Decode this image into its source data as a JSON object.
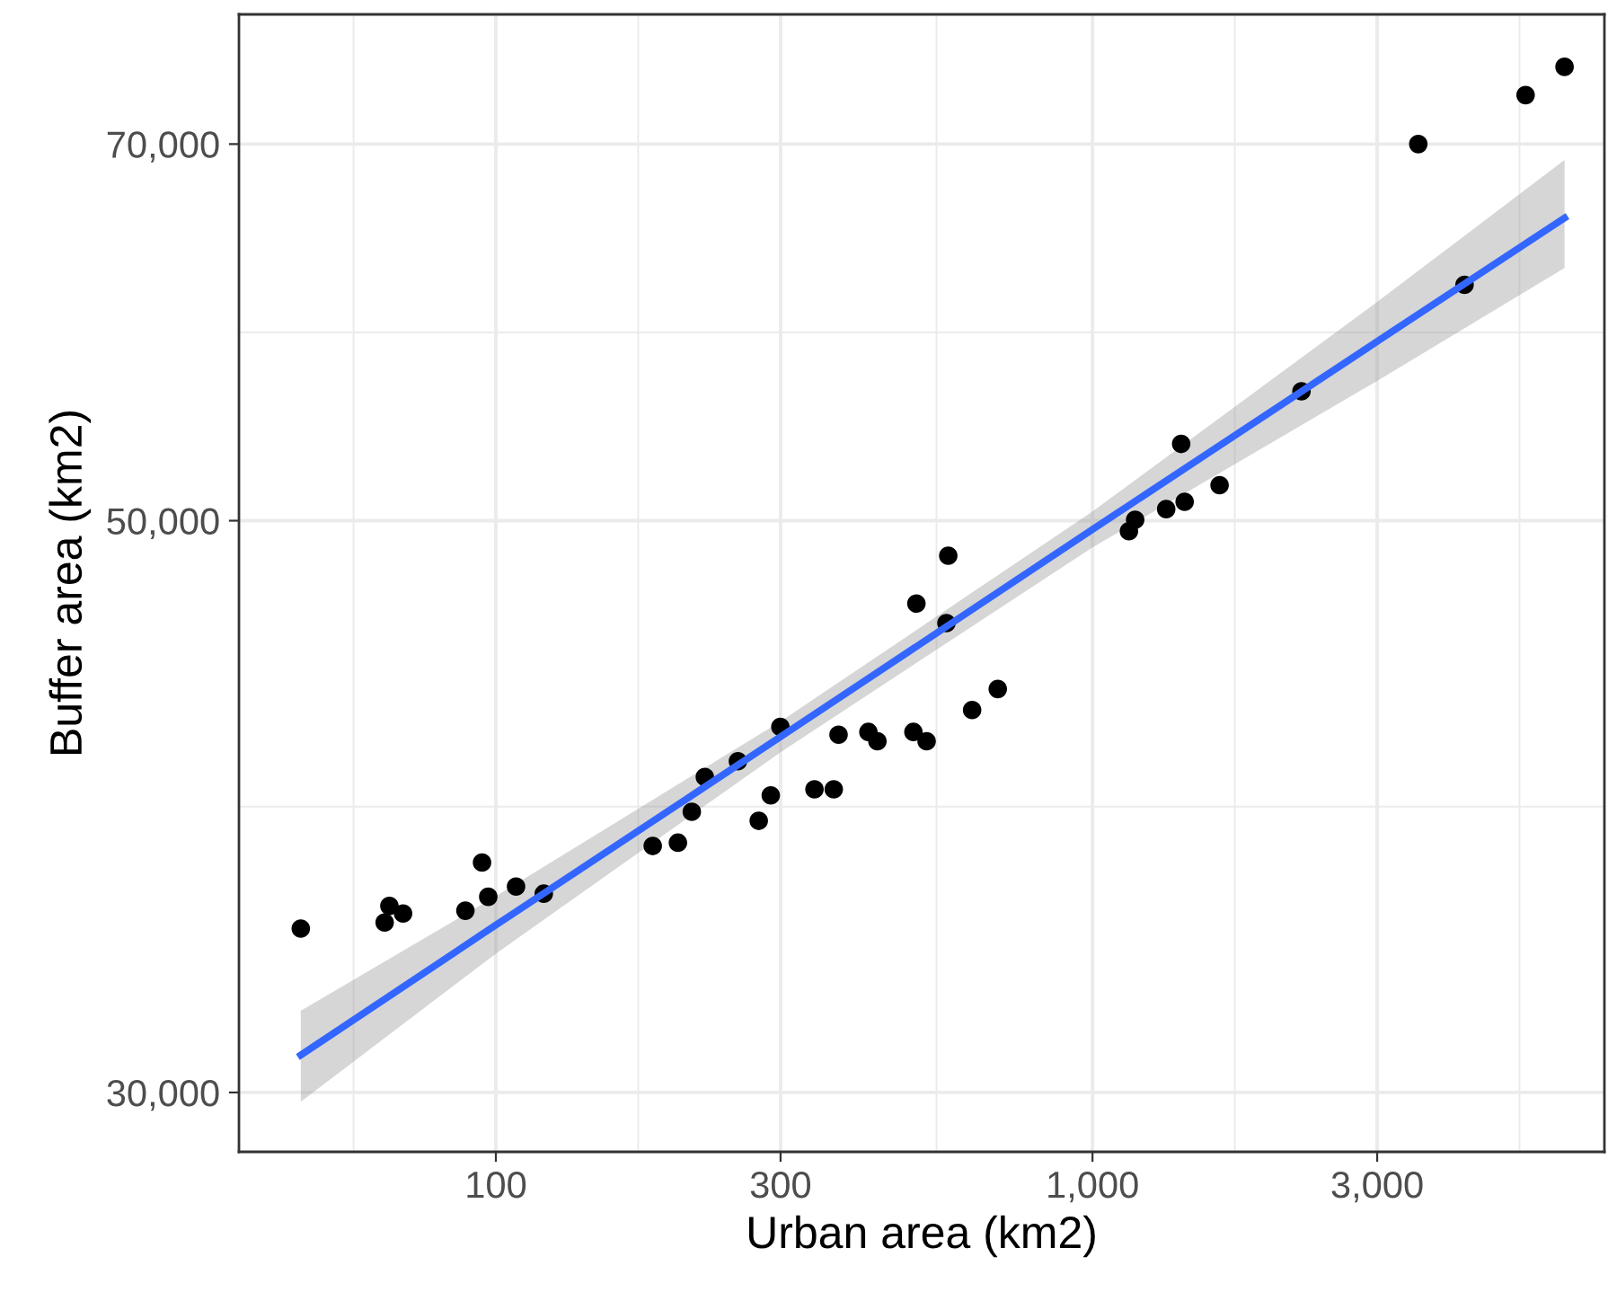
{
  "chart_data": {
    "type": "scatter",
    "xlabel": "Urban area (km2)",
    "ylabel": "Buffer area (km2)",
    "log": "xy",
    "grid": true,
    "marker": "circle",
    "xlim": [
      37.1,
      7211
    ],
    "ylim": [
      28450,
      78600
    ],
    "xticks": [
      100,
      300,
      {
        "value": 1000,
        "label": "1,000"
      },
      {
        "value": 3000,
        "label": "3,000"
      }
    ],
    "yticks": [
      {
        "value": 30000,
        "label": "30,000"
      },
      {
        "value": 50000,
        "label": "50,000"
      },
      {
        "value": 70000,
        "label": "70,000"
      }
    ],
    "series": [
      {
        "color": "#000000",
        "x": [
          47.1,
          65.1,
          66.3,
          69.9,
          88.9,
          94.8,
          97.1,
          108.1,
          120.3,
          183.2,
          201.9,
          213.0,
          224.0,
          254.5,
          275.8,
          288.9,
          299.8,
          342.0,
          368.4,
          375.3,
          421.1,
          436.0,
          501.0,
          527.2,
          506.8,
          573.1,
          569.1,
          628.4,
          693.8,
          1151,
          1179,
          1329,
          1427,
          1408,
          1633,
          2240,
          3516,
          4203,
          5320,
          6183
        ],
        "values": [
          34730,
          34920,
          35440,
          35200,
          35290,
          36840,
          35730,
          36060,
          35830,
          37390,
          37500,
          38550,
          39770,
          40330,
          38240,
          39120,
          41590,
          39330,
          39330,
          41300,
          41400,
          41060,
          41400,
          41060,
          46430,
          48460,
          45630,
          42220,
          43020,
          49530,
          50040,
          50520,
          50850,
          53550,
          51610,
          56130,
          70000,
          61730,
          73130,
          75000
        ]
      },
      {
        "type": "line",
        "color": "#3366ff",
        "line_style": "solid",
        "marker": "none",
        "x": [
          47.1,
          100,
          300,
          1000,
          3000,
          6183
        ],
        "values": [
          31020,
          34840,
          41220,
          49610,
          58680,
          65530
        ],
        "lower": [
          29750,
          33960,
          40660,
          48820,
          56650,
          62660
        ],
        "upper": [
          32270,
          35750,
          41790,
          50410,
          60790,
          69010
        ]
      }
    ]
  }
}
